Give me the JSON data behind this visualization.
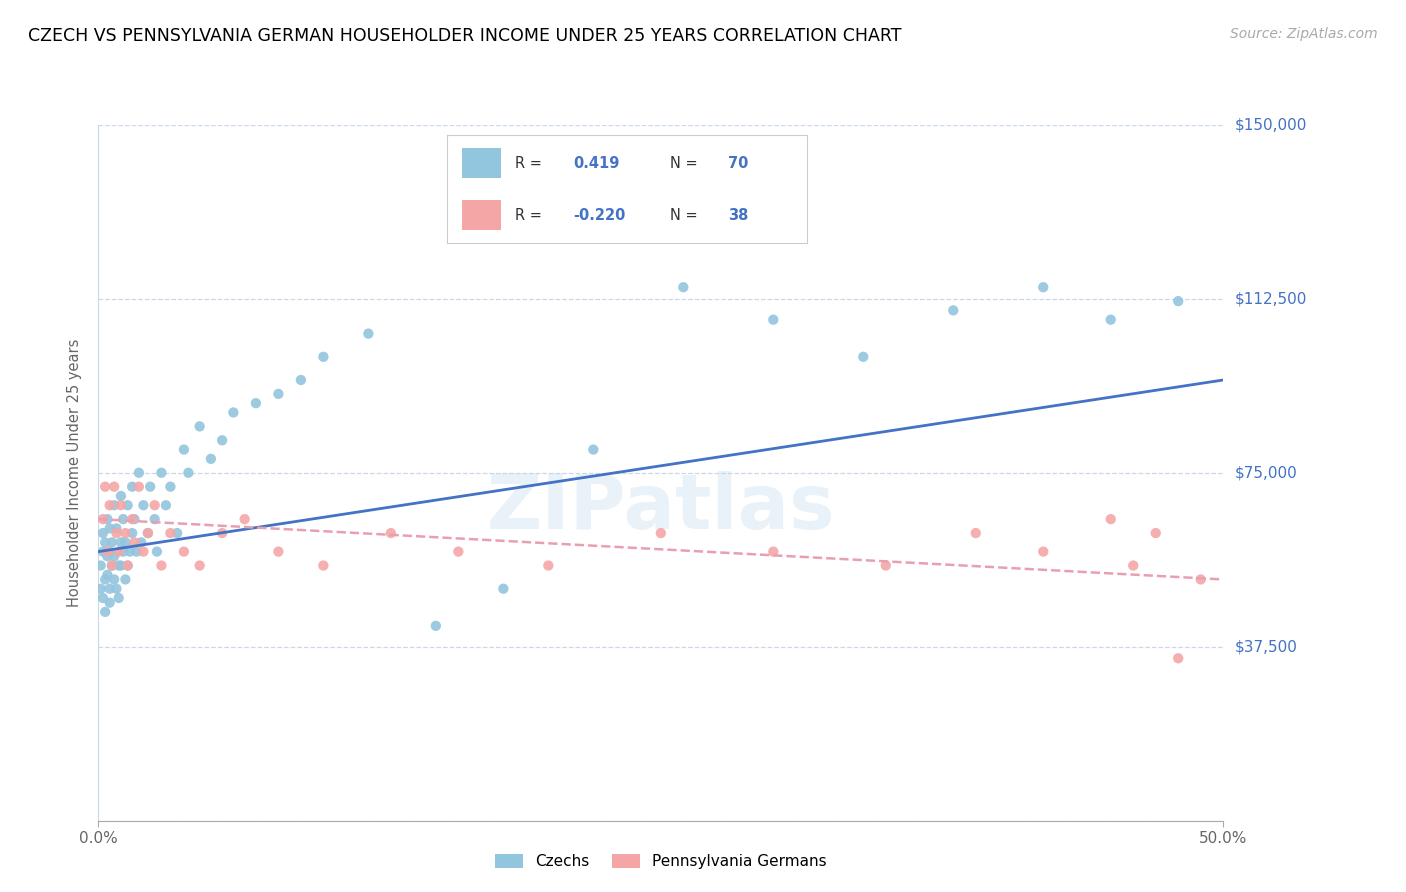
{
  "title": "CZECH VS PENNSYLVANIA GERMAN HOUSEHOLDER INCOME UNDER 25 YEARS CORRELATION CHART",
  "source": "Source: ZipAtlas.com",
  "ylabel": "Householder Income Under 25 years",
  "xlim": [
    0.0,
    0.5
  ],
  "ylim": [
    0,
    150000
  ],
  "yticks": [
    0,
    37500,
    75000,
    112500,
    150000
  ],
  "ytick_labels": [
    "",
    "$37,500",
    "$75,000",
    "$112,500",
    "$150,000"
  ],
  "xticks": [
    0.0,
    0.5
  ],
  "xtick_labels": [
    "0.0%",
    "50.0%"
  ],
  "czech_color": "#92c5de",
  "pg_color": "#f4a6a6",
  "czech_line_color": "#4472c4",
  "pg_line_color": "#e8a0b0",
  "czech_R": "0.419",
  "czech_N": "70",
  "pg_R": "-0.220",
  "pg_N": "38",
  "legend_label_czech": "Czechs",
  "legend_label_pg": "Pennsylvania Germans",
  "watermark": "ZIPatlas",
  "background_color": "#ffffff",
  "grid_color": "#c8d8ea",
  "axis_label_color": "#4472c4",
  "title_color": "#000000",
  "czech_scatter_x": [
    0.001,
    0.001,
    0.002,
    0.002,
    0.002,
    0.003,
    0.003,
    0.003,
    0.004,
    0.004,
    0.004,
    0.005,
    0.005,
    0.005,
    0.005,
    0.006,
    0.006,
    0.007,
    0.007,
    0.007,
    0.008,
    0.008,
    0.009,
    0.009,
    0.01,
    0.01,
    0.01,
    0.011,
    0.011,
    0.012,
    0.012,
    0.013,
    0.013,
    0.014,
    0.015,
    0.015,
    0.016,
    0.017,
    0.018,
    0.019,
    0.02,
    0.022,
    0.023,
    0.025,
    0.026,
    0.028,
    0.03,
    0.032,
    0.035,
    0.038,
    0.04,
    0.045,
    0.05,
    0.055,
    0.06,
    0.07,
    0.08,
    0.09,
    0.1,
    0.12,
    0.15,
    0.18,
    0.22,
    0.26,
    0.3,
    0.34,
    0.38,
    0.42,
    0.45,
    0.48
  ],
  "czech_scatter_y": [
    55000,
    50000,
    58000,
    48000,
    62000,
    52000,
    60000,
    45000,
    57000,
    53000,
    65000,
    50000,
    58000,
    47000,
    63000,
    55000,
    60000,
    52000,
    68000,
    57000,
    50000,
    63000,
    55000,
    48000,
    60000,
    70000,
    55000,
    58000,
    65000,
    52000,
    60000,
    55000,
    68000,
    58000,
    62000,
    72000,
    65000,
    58000,
    75000,
    60000,
    68000,
    62000,
    72000,
    65000,
    58000,
    75000,
    68000,
    72000,
    62000,
    80000,
    75000,
    85000,
    78000,
    82000,
    88000,
    90000,
    92000,
    95000,
    100000,
    105000,
    42000,
    50000,
    80000,
    115000,
    108000,
    100000,
    110000,
    115000,
    108000,
    112000
  ],
  "pg_scatter_x": [
    0.002,
    0.003,
    0.004,
    0.005,
    0.006,
    0.007,
    0.008,
    0.009,
    0.01,
    0.012,
    0.013,
    0.015,
    0.016,
    0.018,
    0.02,
    0.022,
    0.025,
    0.028,
    0.032,
    0.038,
    0.045,
    0.055,
    0.065,
    0.08,
    0.1,
    0.13,
    0.16,
    0.2,
    0.25,
    0.3,
    0.35,
    0.39,
    0.42,
    0.45,
    0.46,
    0.47,
    0.48,
    0.49
  ],
  "pg_scatter_y": [
    65000,
    72000,
    58000,
    68000,
    55000,
    72000,
    62000,
    58000,
    68000,
    62000,
    55000,
    65000,
    60000,
    72000,
    58000,
    62000,
    68000,
    55000,
    62000,
    58000,
    55000,
    62000,
    65000,
    58000,
    55000,
    62000,
    58000,
    55000,
    62000,
    58000,
    55000,
    62000,
    58000,
    65000,
    55000,
    62000,
    35000,
    52000
  ],
  "czech_trend_x": [
    0.0,
    0.5
  ],
  "czech_trend_y": [
    58000,
    95000
  ],
  "pg_trend_x": [
    0.0,
    0.5
  ],
  "pg_trend_y": [
    65000,
    52000
  ]
}
